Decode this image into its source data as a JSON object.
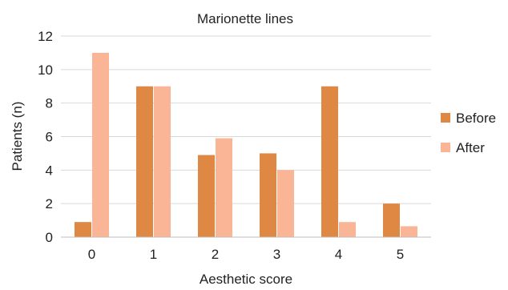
{
  "chart_data": {
    "type": "bar",
    "title": "Marionette lines",
    "xlabel": "Aesthetic score",
    "ylabel": "Patients (n)",
    "categories": [
      "0",
      "1",
      "2",
      "3",
      "4",
      "5"
    ],
    "ylim": [
      0,
      12
    ],
    "yticks": [
      "0",
      "2",
      "4",
      "6",
      "8",
      "10",
      "12"
    ],
    "grid": true,
    "legend_position": "right",
    "series": [
      {
        "name": "Before",
        "color": "#de8843",
        "values": [
          0.9,
          9,
          4.9,
          5,
          9,
          2
        ]
      },
      {
        "name": "After",
        "color": "#f9b595",
        "values": [
          11,
          9,
          5.9,
          4,
          0.9,
          0.65
        ]
      }
    ]
  }
}
